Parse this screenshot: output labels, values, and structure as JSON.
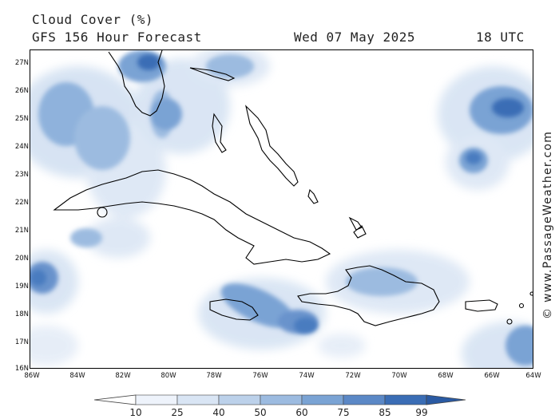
{
  "header": {
    "title": "Cloud Cover (%)",
    "model": "GFS 156 Hour Forecast",
    "valid_time": "Wed 07 May 2025",
    "run": "18 UTC"
  },
  "credit": "© www.PassageWeather.com",
  "map": {
    "lat_range": [
      16,
      27.5
    ],
    "lon_range": [
      -86,
      -64
    ],
    "lat_ticks": [
      "27N",
      "26N",
      "25N",
      "24N",
      "23N",
      "22N",
      "21N",
      "20N",
      "19N",
      "18N",
      "17N",
      "16N"
    ],
    "lon_ticks": [
      "86W",
      "84W",
      "82W",
      "80W",
      "78W",
      "76W",
      "74W",
      "72W",
      "70W",
      "68W",
      "66W",
      "64W"
    ]
  },
  "legend": {
    "labels": [
      "10",
      "25",
      "40",
      "50",
      "60",
      "75",
      "85",
      "99"
    ],
    "colors": [
      "#ffffff",
      "#eef3fb",
      "#d9e5f4",
      "#bcd1ea",
      "#9cbbe0",
      "#7aa3d4",
      "#5b88c6",
      "#3a6db5",
      "#2a5aa3"
    ]
  }
}
